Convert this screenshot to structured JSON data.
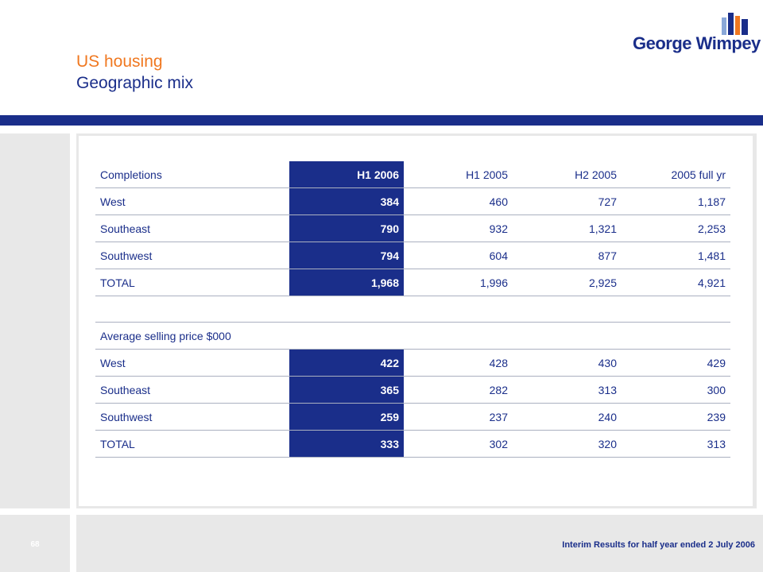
{
  "title": {
    "line1": "US housing",
    "line2": "Geographic mix"
  },
  "logo": {
    "text": "George Wimpey",
    "colors": {
      "blue": "#1a2e8a",
      "orange": "#f07820",
      "light_blue": "#8aa8d8"
    }
  },
  "colors": {
    "accent": "#1a2e8a",
    "title_orange": "#f07820",
    "panel_gray": "#e8e8e8"
  },
  "completions": {
    "headers": [
      "Completions",
      "H1 2006",
      "H1 2005",
      "H2 2005",
      "2005 full yr"
    ],
    "rows": [
      {
        "label": "West",
        "values": [
          "384",
          "460",
          "727",
          "1,187"
        ]
      },
      {
        "label": "Southeast",
        "values": [
          "790",
          "932",
          "1,321",
          "2,253"
        ]
      },
      {
        "label": "Southwest",
        "values": [
          "794",
          "604",
          "877",
          "1,481"
        ]
      },
      {
        "label": "TOTAL",
        "values": [
          "1,968",
          "1,996",
          "2,925",
          "4,921"
        ]
      }
    ]
  },
  "asp": {
    "header": "Average selling price $000",
    "rows": [
      {
        "label": "West",
        "values": [
          "422",
          "428",
          "430",
          "429"
        ]
      },
      {
        "label": "Southeast",
        "values": [
          "365",
          "282",
          "313",
          "300"
        ]
      },
      {
        "label": "Southwest",
        "values": [
          "259",
          "237",
          "240",
          "239"
        ]
      },
      {
        "label": "TOTAL",
        "values": [
          "333",
          "302",
          "320",
          "313"
        ]
      }
    ]
  },
  "footer": {
    "page": "68",
    "text": "Interim Results for half year ended 2 July 2006"
  }
}
